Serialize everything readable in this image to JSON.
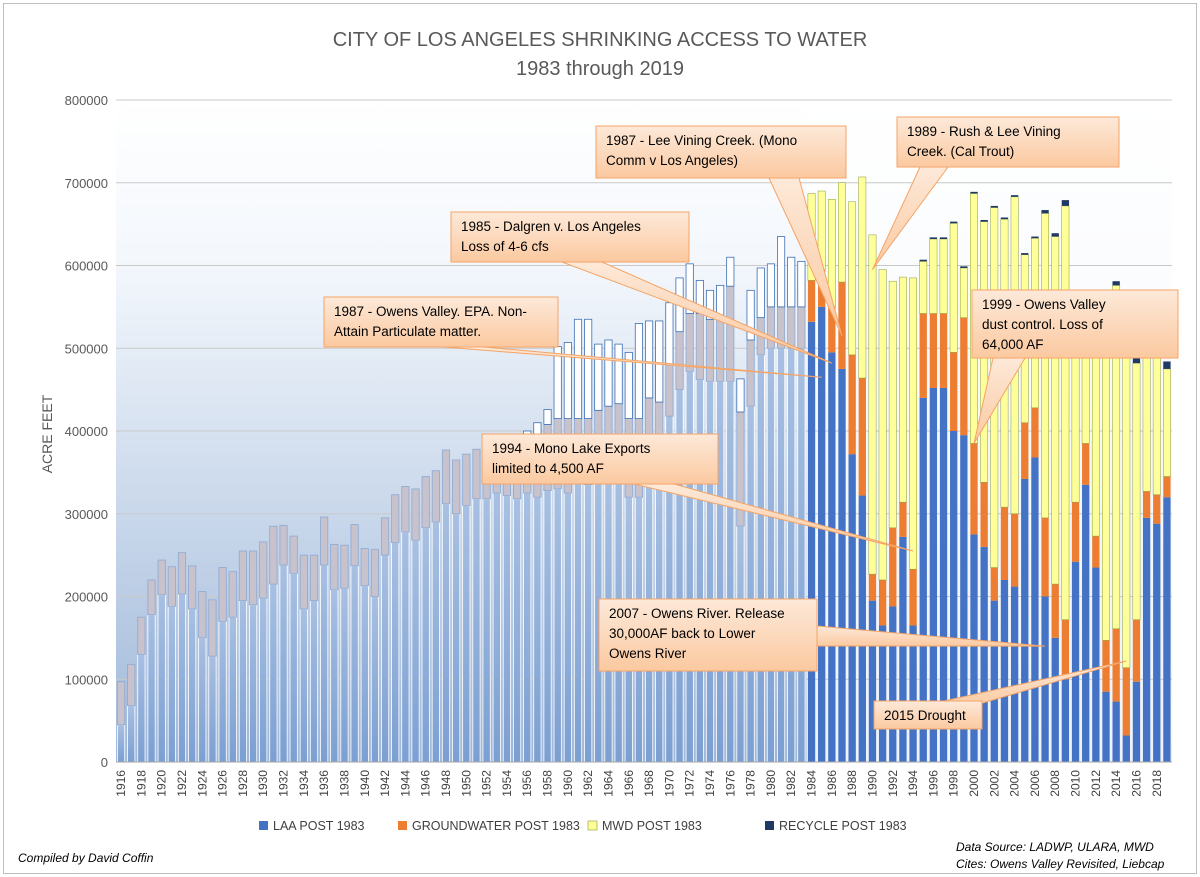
{
  "chart_data": {
    "type": "bar",
    "stacked": true,
    "title": "CITY OF LOS ANGELES SHRINKING ACCESS TO WATER",
    "subtitle": "1983 through 2019",
    "ylabel": "ACRE FEET",
    "xlabel": "",
    "ylim": [
      0,
      800000
    ],
    "yticks": [
      "0",
      "100000",
      "200000",
      "300000",
      "400000",
      "500000",
      "600000",
      "700000",
      "800000"
    ],
    "grid": true,
    "legend_position": "bottom",
    "years": [
      1916,
      1917,
      1918,
      1919,
      1920,
      1921,
      1922,
      1923,
      1924,
      1925,
      1926,
      1927,
      1928,
      1929,
      1930,
      1931,
      1932,
      1933,
      1934,
      1935,
      1936,
      1937,
      1938,
      1939,
      1940,
      1941,
      1942,
      1943,
      1944,
      1945,
      1946,
      1947,
      1948,
      1949,
      1950,
      1951,
      1952,
      1953,
      1954,
      1955,
      1956,
      1957,
      1958,
      1959,
      1960,
      1961,
      1962,
      1963,
      1964,
      1965,
      1966,
      1967,
      1968,
      1969,
      1970,
      1971,
      1972,
      1973,
      1974,
      1975,
      1976,
      1977,
      1978,
      1979,
      1980,
      1981,
      1982,
      1983,
      1984,
      1985,
      1986,
      1987,
      1988,
      1989,
      1990,
      1991,
      1992,
      1993,
      1994,
      1995,
      1996,
      1997,
      1998,
      1999,
      2000,
      2001,
      2002,
      2003,
      2004,
      2005,
      2006,
      2007,
      2008,
      2009,
      2010,
      2011,
      2012,
      2013,
      2014,
      2015,
      2016,
      2017,
      2018,
      2019
    ],
    "xtick_labels": [
      "1916",
      "1918",
      "1920",
      "1922",
      "1924",
      "1926",
      "1928",
      "1930",
      "1932",
      "1934",
      "1936",
      "1938",
      "1940",
      "1942",
      "1944",
      "1946",
      "1948",
      "1950",
      "1952",
      "1954",
      "1956",
      "1958",
      "1960",
      "1962",
      "1964",
      "1966",
      "1968",
      "1970",
      "1972",
      "1974",
      "1976",
      "1978",
      "1980",
      "1982",
      "1984",
      "1986",
      "1988",
      "1990",
      "1992",
      "1994",
      "1996",
      "1998",
      "2000",
      "2002",
      "2004",
      "2006",
      "2008",
      "2010",
      "2012",
      "2014",
      "2016",
      "2018"
    ],
    "post1983_start_year": 1984,
    "series": [
      {
        "name": "LAA POST 1983",
        "color": "#4472c4",
        "values": [
          45000,
          68000,
          130000,
          178000,
          202000,
          188000,
          203000,
          185000,
          150000,
          128000,
          170000,
          175000,
          195000,
          190000,
          198000,
          215000,
          238000,
          228000,
          185000,
          195000,
          238000,
          208000,
          210000,
          237000,
          213000,
          200000,
          250000,
          265000,
          278000,
          268000,
          283000,
          290000,
          312000,
          300000,
          310000,
          318000,
          318000,
          325000,
          322000,
          318000,
          325000,
          320000,
          328000,
          330000,
          325000,
          345000,
          335000,
          360000,
          338000,
          355000,
          320000,
          320000,
          350000,
          345000,
          418000,
          450000,
          472000,
          462000,
          460000,
          460000,
          460000,
          285000,
          430000,
          492000,
          500000,
          500000,
          500000,
          500000,
          532000,
          550000,
          495000,
          475000,
          372000,
          322000,
          195000,
          165000,
          188000,
          272000,
          165000,
          440000,
          452000,
          452000,
          400000,
          395000,
          275000,
          260000,
          195000,
          220000,
          212000,
          342000,
          368000,
          200000,
          150000,
          100000,
          242000,
          335000,
          235000,
          85000,
          73000,
          32000,
          97000,
          295000,
          288000,
          320000
        ]
      },
      {
        "name": "GROUNDWATER POST 1983",
        "color": "#ed7d31",
        "values": [
          52000,
          50000,
          45000,
          42000,
          42000,
          48000,
          50000,
          52000,
          56000,
          68000,
          65000,
          55000,
          60000,
          65000,
          68000,
          70000,
          48000,
          45000,
          65000,
          55000,
          58000,
          55000,
          52000,
          50000,
          45000,
          57000,
          45000,
          58000,
          55000,
          62000,
          62000,
          62000,
          65000,
          65000,
          62000,
          60000,
          60000,
          58000,
          55000,
          65000,
          70000,
          75000,
          80000,
          85000,
          90000,
          70000,
          80000,
          65000,
          92000,
          78000,
          95000,
          95000,
          90000,
          90000,
          62000,
          70000,
          70000,
          80000,
          75000,
          78000,
          115000,
          138000,
          80000,
          45000,
          50000,
          50000,
          50000,
          50000,
          50000,
          45000,
          55000,
          105000,
          120000,
          142000,
          32000,
          55000,
          95000,
          42000,
          68000,
          102000,
          90000,
          90000,
          95000,
          142000,
          110000,
          78000,
          40000,
          88000,
          88000,
          68000,
          60000,
          95000,
          65000,
          72000,
          72000,
          50000,
          38000,
          62000,
          88000,
          82000,
          75000,
          32000,
          35000,
          25000
        ]
      },
      {
        "name": "MWD POST 1983",
        "color": "#ffff99",
        "values": [
          0,
          0,
          0,
          0,
          0,
          0,
          0,
          0,
          0,
          0,
          0,
          0,
          0,
          0,
          0,
          0,
          0,
          0,
          0,
          0,
          0,
          0,
          0,
          0,
          0,
          0,
          0,
          0,
          0,
          0,
          0,
          0,
          0,
          0,
          0,
          0,
          0,
          0,
          0,
          0,
          5000,
          15000,
          18000,
          87000,
          92000,
          120000,
          120000,
          80000,
          80000,
          72000,
          80000,
          115000,
          93000,
          98000,
          75000,
          65000,
          60000,
          40000,
          35000,
          38000,
          35000,
          40000,
          60000,
          60000,
          52000,
          85000,
          60000,
          55000,
          105000,
          95000,
          130000,
          120000,
          185000,
          243000,
          410000,
          375000,
          298000,
          272000,
          352000,
          63000,
          90000,
          90000,
          156000,
          60000,
          302000,
          315000,
          435000,
          348000,
          383000,
          203000,
          205000,
          368000,
          420000,
          500000,
          218000,
          128000,
          270000,
          415000,
          415000,
          390000,
          310000,
          200000,
          190000,
          130000
        ]
      },
      {
        "name": "RECYCLE POST 1983",
        "color": "#1f3864",
        "values": [
          0,
          0,
          0,
          0,
          0,
          0,
          0,
          0,
          0,
          0,
          0,
          0,
          0,
          0,
          0,
          0,
          0,
          0,
          0,
          0,
          0,
          0,
          0,
          0,
          0,
          0,
          0,
          0,
          0,
          0,
          0,
          0,
          0,
          0,
          0,
          0,
          0,
          0,
          0,
          0,
          0,
          0,
          0,
          0,
          0,
          0,
          0,
          0,
          0,
          0,
          0,
          0,
          0,
          0,
          0,
          0,
          0,
          0,
          0,
          0,
          0,
          0,
          0,
          0,
          0,
          0,
          0,
          0,
          0,
          0,
          0,
          0,
          0,
          0,
          0,
          0,
          0,
          0,
          0,
          2000,
          2000,
          2000,
          2000,
          2000,
          2000,
          2000,
          2000,
          2000,
          2000,
          2000,
          2000,
          4000,
          4000,
          7000,
          5000,
          5000,
          5000,
          5000,
          5000,
          5000,
          6000,
          6000,
          9000,
          9000
        ]
      }
    ],
    "annotations": [
      {
        "text": [
          "1987 - Lee Vining Creek. (Mono",
          "Comm v Los Angeles)"
        ],
        "year": 1987,
        "value": 515000
      },
      {
        "text": [
          "1989 - Rush & Lee Vining",
          "Creek. (Cal Trout)"
        ],
        "year": 1990,
        "value": 595000
      },
      {
        "text": [
          "1985 - Dalgren v. Los Angeles",
          "Loss of 4-6 cfs"
        ],
        "year": 1986,
        "value": 482000
      },
      {
        "text": [
          "1987 - Owens Valley. EPA. Non-",
          "Attain Particulate matter."
        ],
        "year": 1985,
        "value": 465000
      },
      {
        "text": [
          "1999 - Owens Valley",
          "dust control. Loss of",
          "64,000 AF"
        ],
        "year": 2000,
        "value": 385000
      },
      {
        "text": [
          "1994 - Mono Lake Exports",
          "limited to 4,500 AF"
        ],
        "year": 1994,
        "value": 255000
      },
      {
        "text": [
          "2007 - Owens River. Release",
          "30,000AF back to Lower",
          "Owens River"
        ],
        "year": 2007,
        "value": 140000
      },
      {
        "text": [
          "2015 Drought"
        ],
        "year": 2015,
        "value": 122000
      }
    ]
  },
  "footer": {
    "credit": "Compiled by David Coffin",
    "source_line1": "Data Source: LADWP, ULARA, MWD",
    "source_line2": "Cites: Owens Valley Revisited, Liebcap"
  }
}
